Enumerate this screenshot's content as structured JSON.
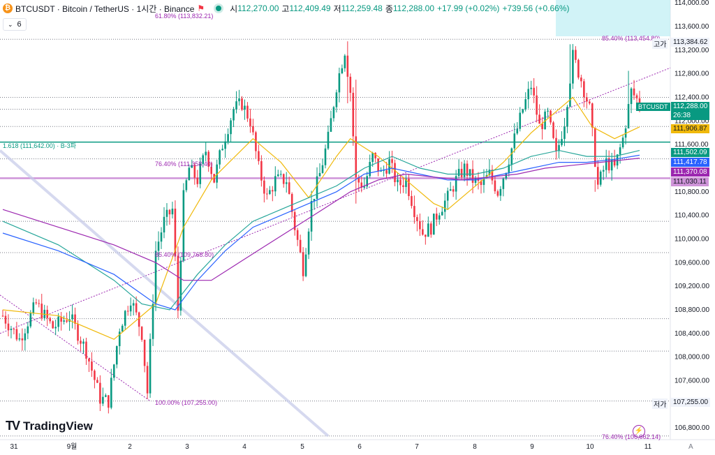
{
  "header": {
    "coin_icon": "bitcoin-icon",
    "title": "BTCUSDT · Bitcoin / TetherUS · 1시간 · Binance",
    "open_label": "시",
    "open": "112,270.00",
    "high_label": "고",
    "high": "112,409.49",
    "low_label": "저",
    "low": "112,259.48",
    "close_label": "종",
    "close": "112,288.00",
    "change": "+17.99 (+0.02%)",
    "change2": "+739.56 (+0.66%)"
  },
  "indicator_toggle": {
    "label": "6",
    "icon": "chevron-down-icon"
  },
  "logo": "TradingView",
  "price_tags": {
    "symbol": "BTCUSDT",
    "last": "112,288.00",
    "countdown": "26:38",
    "high_label": "고가",
    "high_value": "113,384.62",
    "low_label": "저가",
    "low_value": "107,255.00",
    "ma1": "111,906.87",
    "ma2": "111,502.09",
    "ma3": "111,417.78",
    "ma4": "111,370.08",
    "ma5": "111,030.11"
  },
  "fib_labels": {
    "f1": "61.80% (113,832.21)",
    "f2": "85.40% (113,454.80)",
    "f3": "1.618 (111,642.00) · B-3파",
    "f4": "76.40% (111,358.40)",
    "f5": "85.40% (109,768.80)",
    "f6": "100.00% (107,255.00)",
    "f7": "76.40% (106,662.14)"
  },
  "colors": {
    "up": "#089981",
    "down": "#f23645",
    "ma_yellow": "#f0b90b",
    "ma_green": "#26a69a",
    "ma_blue": "#2962ff",
    "ma_purple": "#9c27b0",
    "fib": "#9c27b0",
    "hline_purple": "#ce93d8",
    "hline_teal": "#089981"
  },
  "chart_data": {
    "type": "candlestick",
    "ylim": [
      106600,
      114050
    ],
    "yticks": [
      "114,000.00",
      "113,600.00",
      "113,200.00",
      "112,800.00",
      "112,400.00",
      "112,000.00",
      "111,600.00",
      "110,800.00",
      "110,400.00",
      "110,000.00",
      "109,600.00",
      "109,200.00",
      "108,800.00",
      "108,400.00",
      "108,000.00",
      "107,600.00",
      "106,800.00"
    ],
    "xticks": [
      "31",
      "9월",
      "2",
      "3",
      "4",
      "5",
      "6",
      "7",
      "8",
      "9",
      "10",
      "11"
    ],
    "bar_count": 230,
    "anchors": [
      [
        0,
        108700
      ],
      [
        6,
        108300
      ],
      [
        12,
        108900
      ],
      [
        18,
        108500
      ],
      [
        24,
        108700
      ],
      [
        30,
        108100
      ],
      [
        35,
        107300
      ],
      [
        38,
        107250
      ],
      [
        42,
        108500
      ],
      [
        46,
        109000
      ],
      [
        50,
        108400
      ],
      [
        52,
        107400
      ],
      [
        55,
        109800
      ],
      [
        58,
        110300
      ],
      [
        61,
        110500
      ],
      [
        63,
        108800
      ],
      [
        65,
        110700
      ],
      [
        67,
        111200
      ],
      [
        70,
        111000
      ],
      [
        73,
        111500
      ],
      [
        76,
        111000
      ],
      [
        79,
        111600
      ],
      [
        83,
        112200
      ],
      [
        86,
        112300
      ],
      [
        89,
        112000
      ],
      [
        92,
        111200
      ],
      [
        95,
        110700
      ],
      [
        98,
        111000
      ],
      [
        102,
        111000
      ],
      [
        105,
        110200
      ],
      [
        108,
        109500
      ],
      [
        111,
        110600
      ],
      [
        114,
        111100
      ],
      [
        117,
        111700
      ],
      [
        120,
        112600
      ],
      [
        123,
        113200
      ],
      [
        125,
        112500
      ],
      [
        127,
        111000
      ],
      [
        130,
        110900
      ],
      [
        133,
        111400
      ],
      [
        136,
        111100
      ],
      [
        139,
        111300
      ],
      [
        142,
        110900
      ],
      [
        145,
        111000
      ],
      [
        148,
        110500
      ],
      [
        151,
        110100
      ],
      [
        154,
        110200
      ],
      [
        157,
        110500
      ],
      [
        160,
        110700
      ],
      [
        163,
        111000
      ],
      [
        166,
        111200
      ],
      [
        169,
        111000
      ],
      [
        172,
        110900
      ],
      [
        175,
        111100
      ],
      [
        178,
        110800
      ],
      [
        181,
        111200
      ],
      [
        184,
        111700
      ],
      [
        187,
        112200
      ],
      [
        190,
        112600
      ],
      [
        193,
        111900
      ],
      [
        196,
        112100
      ],
      [
        199,
        111400
      ],
      [
        202,
        112000
      ],
      [
        205,
        113100
      ],
      [
        208,
        112700
      ],
      [
        211,
        112200
      ],
      [
        214,
        110900
      ],
      [
        217,
        111300
      ],
      [
        220,
        111200
      ],
      [
        223,
        111700
      ],
      [
        226,
        112500
      ],
      [
        229,
        112300
      ]
    ],
    "candles_highlight": [
      {
        "x": 124,
        "high": 113350,
        "low": 112300
      },
      {
        "x": 127,
        "high": 112700,
        "low": 110600
      },
      {
        "x": 204,
        "high": 113300,
        "low": 112600
      },
      {
        "x": 213,
        "high": 111000,
        "low": 110800
      },
      {
        "x": 225,
        "high": 112850,
        "low": 112000
      }
    ],
    "ma_series": [
      {
        "name": "ma-yellow",
        "points": [
          [
            0,
            108800
          ],
          [
            20,
            108700
          ],
          [
            40,
            108300
          ],
          [
            55,
            108900
          ],
          [
            65,
            110200
          ],
          [
            75,
            111000
          ],
          [
            90,
            111700
          ],
          [
            100,
            111300
          ],
          [
            110,
            110700
          ],
          [
            120,
            111400
          ],
          [
            125,
            111700
          ],
          [
            135,
            111400
          ],
          [
            145,
            111000
          ],
          [
            155,
            110600
          ],
          [
            160,
            110500
          ],
          [
            170,
            110900
          ],
          [
            180,
            111300
          ],
          [
            190,
            111800
          ],
          [
            200,
            112200
          ],
          [
            205,
            112400
          ],
          [
            212,
            111900
          ],
          [
            220,
            111700
          ],
          [
            229,
            111900
          ]
        ]
      },
      {
        "name": "ma-green",
        "points": [
          [
            0,
            110300
          ],
          [
            20,
            109900
          ],
          [
            40,
            109300
          ],
          [
            50,
            108900
          ],
          [
            60,
            108800
          ],
          [
            70,
            109400
          ],
          [
            80,
            109900
          ],
          [
            90,
            110300
          ],
          [
            100,
            110500
          ],
          [
            110,
            110700
          ],
          [
            120,
            110900
          ],
          [
            130,
            111200
          ],
          [
            140,
            111400
          ],
          [
            150,
            111200
          ],
          [
            160,
            111100
          ],
          [
            170,
            111100
          ],
          [
            180,
            111200
          ],
          [
            190,
            111400
          ],
          [
            200,
            111500
          ],
          [
            210,
            111400
          ],
          [
            220,
            111400
          ],
          [
            229,
            111500
          ]
        ]
      },
      {
        "name": "ma-blue",
        "points": [
          [
            0,
            110100
          ],
          [
            20,
            109800
          ],
          [
            40,
            109400
          ],
          [
            55,
            108900
          ],
          [
            62,
            108800
          ],
          [
            70,
            109300
          ],
          [
            80,
            109800
          ],
          [
            90,
            110200
          ],
          [
            100,
            110400
          ],
          [
            110,
            110600
          ],
          [
            120,
            110800
          ],
          [
            130,
            111100
          ],
          [
            140,
            111200
          ],
          [
            150,
            111100
          ],
          [
            160,
            111000
          ],
          [
            170,
            111000
          ],
          [
            180,
            111100
          ],
          [
            190,
            111200
          ],
          [
            200,
            111300
          ],
          [
            210,
            111300
          ],
          [
            220,
            111350
          ],
          [
            229,
            111420
          ]
        ]
      },
      {
        "name": "ma-purple",
        "points": [
          [
            0,
            110500
          ],
          [
            20,
            110200
          ],
          [
            40,
            109900
          ],
          [
            55,
            109600
          ],
          [
            65,
            109300
          ],
          [
            75,
            109300
          ],
          [
            85,
            109600
          ],
          [
            95,
            109900
          ],
          [
            105,
            110200
          ],
          [
            115,
            110500
          ],
          [
            125,
            110800
          ],
          [
            135,
            111000
          ],
          [
            145,
            111100
          ],
          [
            155,
            111050
          ],
          [
            165,
            111000
          ],
          [
            175,
            111050
          ],
          [
            185,
            111100
          ],
          [
            195,
            111200
          ],
          [
            205,
            111250
          ],
          [
            215,
            111300
          ],
          [
            229,
            111370
          ]
        ]
      }
    ],
    "hlines": [
      {
        "y": 113384.62,
        "style": "dotted"
      },
      {
        "y": 112400,
        "style": "dotted"
      },
      {
        "y": 112200,
        "style": "dotted"
      },
      {
        "y": 111906.87,
        "style": "dotted"
      },
      {
        "y": 111642,
        "style": "solid-teal"
      },
      {
        "y": 111358.4,
        "style": "dotted"
      },
      {
        "y": 111030.11,
        "style": "solid-purple"
      },
      {
        "y": 110300,
        "style": "dotted"
      },
      {
        "y": 109768.8,
        "style": "dotted"
      },
      {
        "y": 108650,
        "style": "dotted"
      },
      {
        "y": 108100,
        "style": "dotted"
      },
      {
        "y": 107255,
        "style": "dotted"
      },
      {
        "y": 106662.14,
        "style": "dotted"
      }
    ]
  }
}
